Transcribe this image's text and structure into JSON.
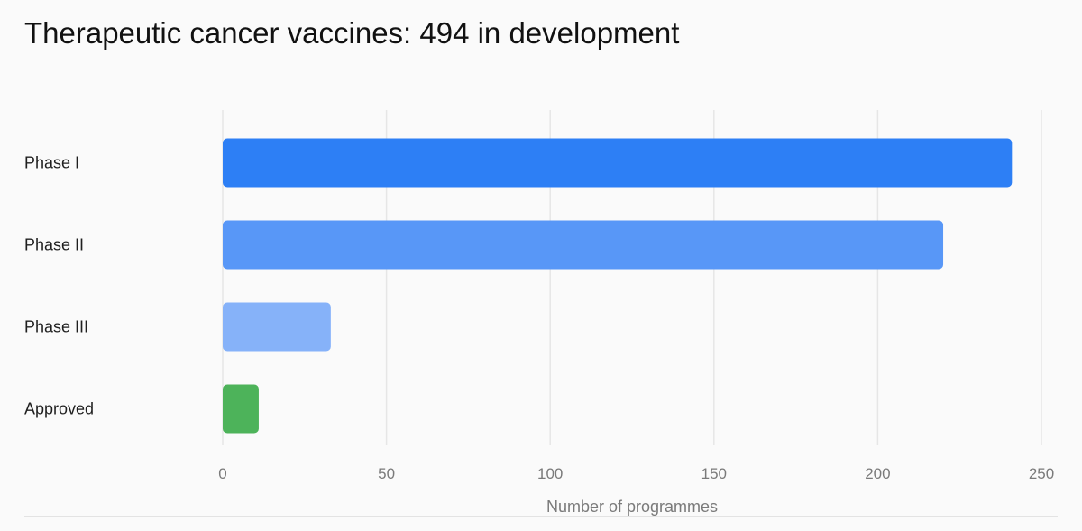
{
  "title": "Therapeutic cancer vaccines: 494 in development",
  "chart_data": {
    "type": "bar",
    "orientation": "horizontal",
    "categories": [
      "Phase I",
      "Phase II",
      "Phase III",
      "Approved"
    ],
    "values": [
      241,
      220,
      33,
      11
    ],
    "colors": [
      "#2d7ff5",
      "#5897f7",
      "#86b2f9",
      "#4db35a"
    ],
    "xlabel": "Number of programmes",
    "ylabel": "",
    "xlim": [
      0,
      250
    ],
    "xticks": [
      0,
      50,
      100,
      150,
      200,
      250
    ],
    "grid": "vertical"
  }
}
